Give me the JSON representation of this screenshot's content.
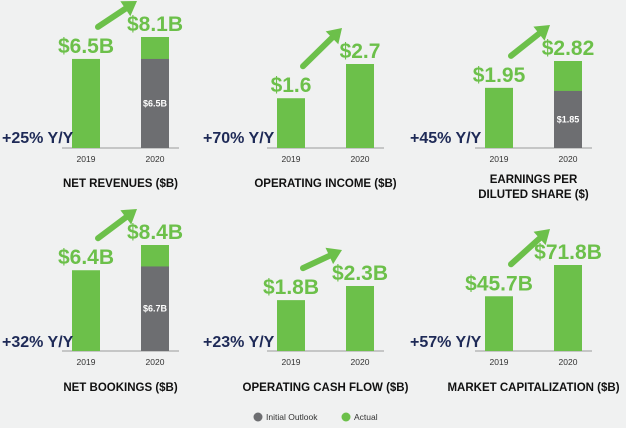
{
  "colors": {
    "actual": "#6cc04a",
    "initial_outlook": "#6d6e71",
    "yoy": "#1e2a57",
    "background": "#f0f1f1"
  },
  "legend": {
    "initial_outlook": "Initial Outlook",
    "actual": "Actual"
  },
  "chart_data": [
    {
      "type": "bar",
      "title": "NET REVENUES ($B)",
      "categories": [
        "2019",
        "2020"
      ],
      "series": [
        {
          "name": "Initial Outlook",
          "values": [
            null,
            6.5
          ]
        },
        {
          "name": "Actual",
          "values": [
            6.5,
            8.1
          ]
        }
      ],
      "labels": [
        "$6.5B",
        "$8.1B"
      ],
      "inner_label": "$6.5B",
      "yoy": "+25% Y/Y"
    },
    {
      "type": "bar",
      "title": "OPERATING INCOME ($B)",
      "categories": [
        "2019",
        "2020"
      ],
      "series": [
        {
          "name": "Actual",
          "values": [
            1.6,
            2.7
          ]
        }
      ],
      "labels": [
        "$1.6",
        "$2.7"
      ],
      "inner_label": "",
      "yoy": "+70% Y/Y"
    },
    {
      "type": "bar",
      "title": "EARNINGS PER DILUTED SHARE ($)",
      "categories": [
        "2019",
        "2020"
      ],
      "series": [
        {
          "name": "Initial Outlook",
          "values": [
            null,
            1.85
          ]
        },
        {
          "name": "Actual",
          "values": [
            1.95,
            2.82
          ]
        }
      ],
      "labels": [
        "$1.95",
        "$2.82"
      ],
      "inner_label": "$1.85",
      "yoy": "+45% Y/Y"
    },
    {
      "type": "bar",
      "title": "NET BOOKINGS ($B)",
      "categories": [
        "2019",
        "2020"
      ],
      "series": [
        {
          "name": "Initial Outlook",
          "values": [
            null,
            6.7
          ]
        },
        {
          "name": "Actual",
          "values": [
            6.4,
            8.4
          ]
        }
      ],
      "labels": [
        "$6.4B",
        "$8.4B"
      ],
      "inner_label": "$6.7B",
      "yoy": "+32% Y/Y"
    },
    {
      "type": "bar",
      "title": "OPERATING CASH FLOW ($B)",
      "categories": [
        "2019",
        "2020"
      ],
      "series": [
        {
          "name": "Actual",
          "values": [
            1.8,
            2.3
          ]
        }
      ],
      "labels": [
        "$1.8B",
        "$2.3B"
      ],
      "inner_label": "",
      "yoy": "+23% Y/Y"
    },
    {
      "type": "bar",
      "title": "MARKET CAPITALIZATION ($B)",
      "categories": [
        "2019",
        "2020"
      ],
      "series": [
        {
          "name": "Actual",
          "values": [
            45.7,
            71.8
          ]
        }
      ],
      "labels": [
        "$45.7B",
        "$71.8B"
      ],
      "inner_label": "",
      "yoy": "+57% Y/Y"
    }
  ]
}
